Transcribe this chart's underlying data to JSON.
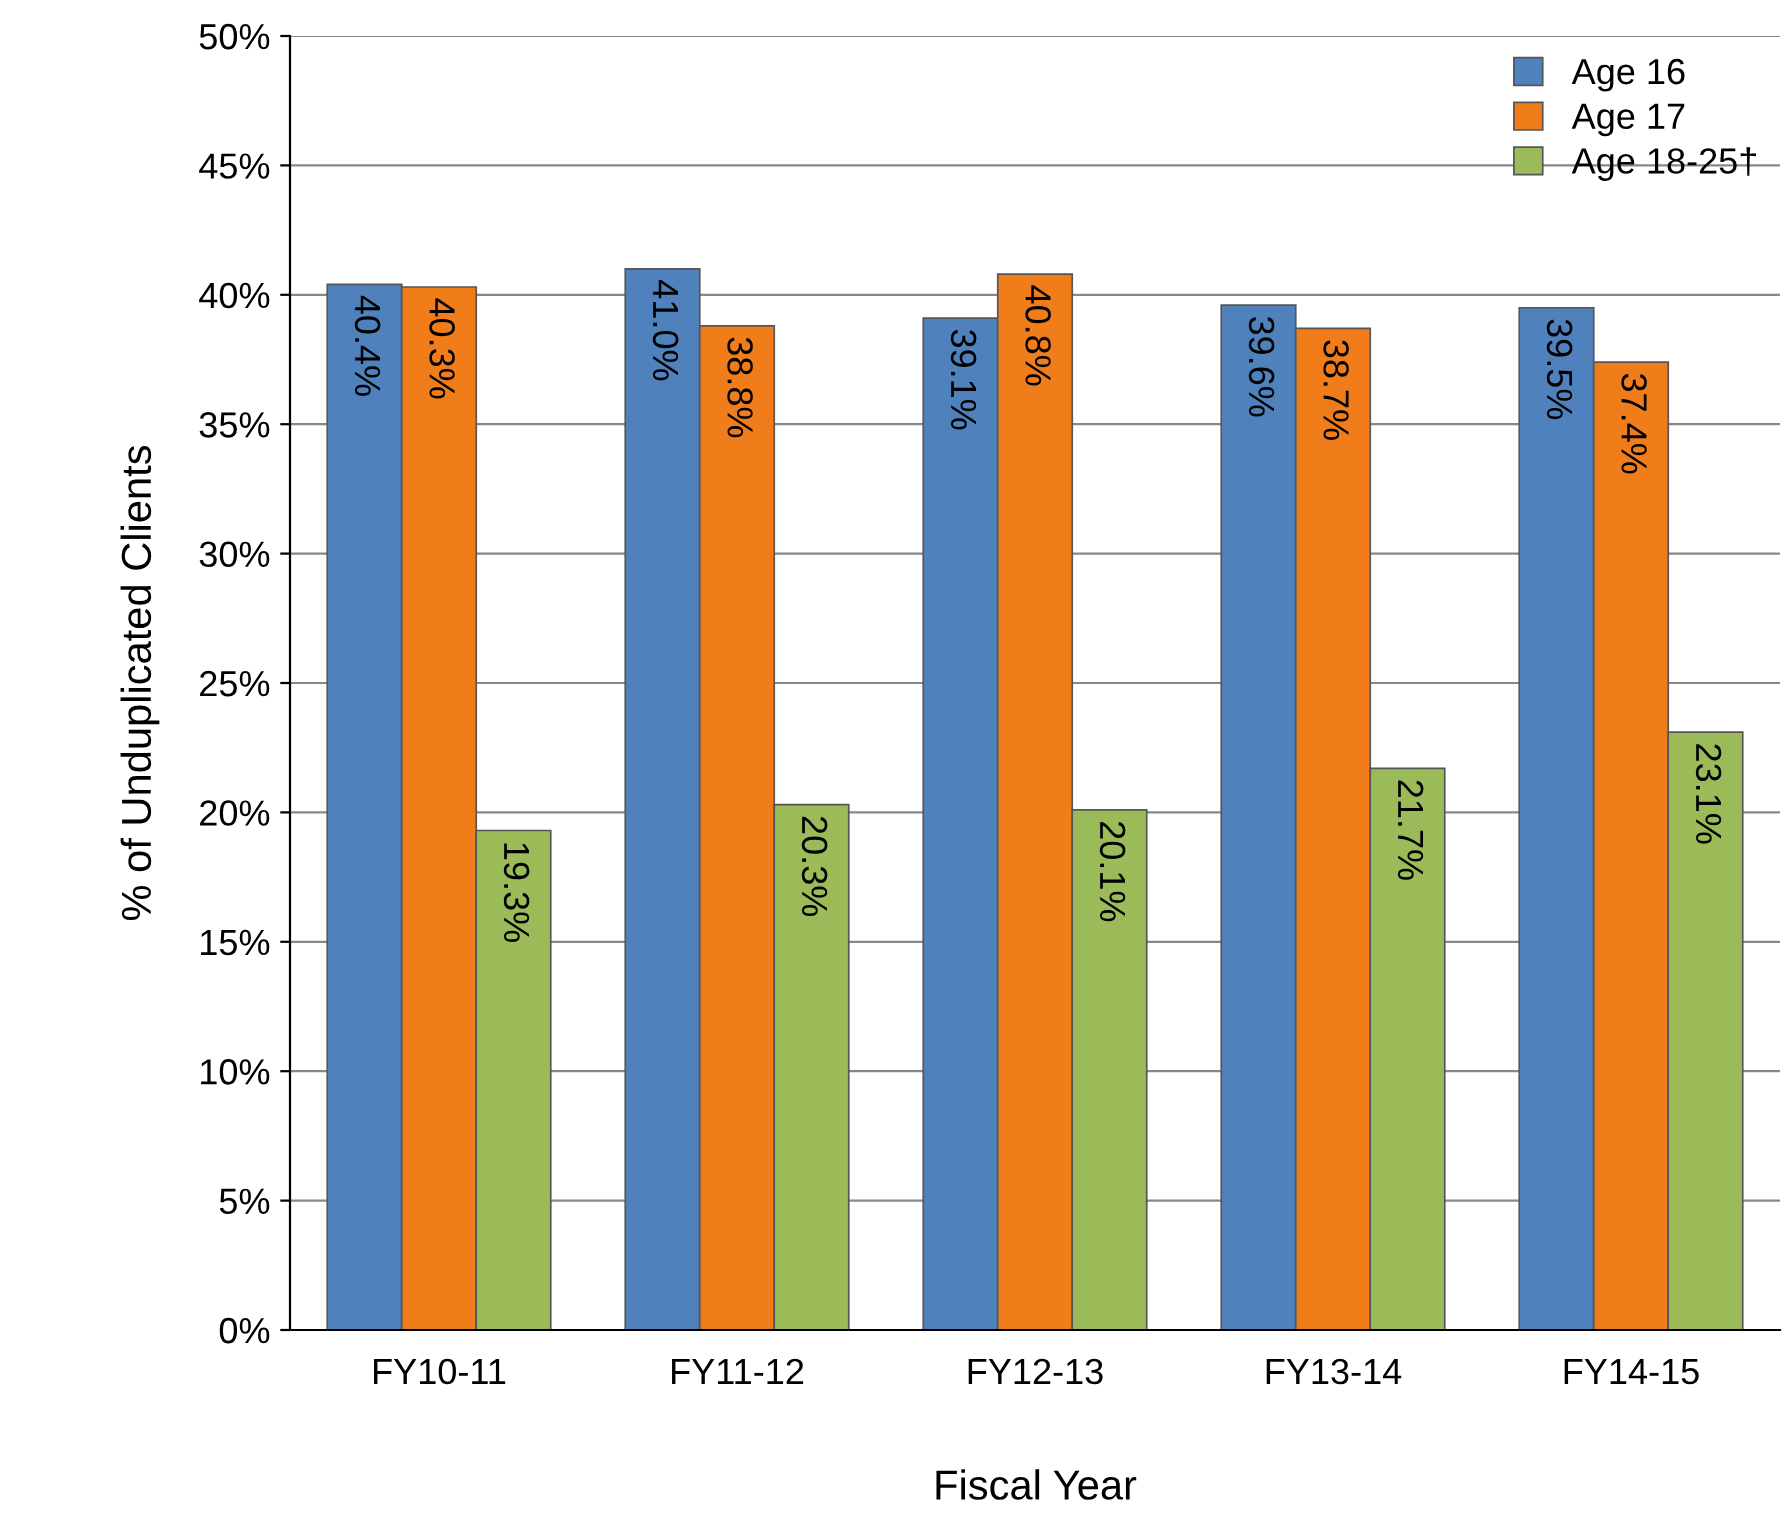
{
  "chart_data": {
    "type": "bar",
    "xlabel": "Fiscal Year",
    "ylabel": "% of Unduplicated Clients",
    "categories": [
      "FY10-11",
      "FY11-12",
      "FY12-13",
      "FY13-14",
      "FY14-15"
    ],
    "series": [
      {
        "name": "Age 16",
        "color": "#4f81bd",
        "values": [
          40.4,
          41.0,
          39.1,
          39.6,
          39.5
        ],
        "value_labels": [
          "40.4%",
          "41.0%",
          "39.1%",
          "39.6%",
          "39.5%"
        ]
      },
      {
        "name": "Age 17",
        "color": "#f07d1a",
        "values": [
          40.3,
          38.8,
          40.8,
          38.7,
          37.4
        ],
        "value_labels": [
          "40.3%",
          "38.8%",
          "40.8%",
          "38.7%",
          "37.4%"
        ]
      },
      {
        "name": "Age 18-25†",
        "color": "#9bbb59",
        "values": [
          19.3,
          20.3,
          20.1,
          21.7,
          23.1
        ],
        "value_labels": [
          "19.3%",
          "20.3%",
          "20.1%",
          "21.7%",
          "23.1%"
        ]
      }
    ],
    "ylim": [
      0,
      50
    ],
    "yticks": [
      {
        "value": 0,
        "label": "0%"
      },
      {
        "value": 5,
        "label": "5%"
      },
      {
        "value": 10,
        "label": "10%"
      },
      {
        "value": 15,
        "label": "15%"
      },
      {
        "value": 20,
        "label": "20%"
      },
      {
        "value": 25,
        "label": "25%"
      },
      {
        "value": 30,
        "label": "30%"
      },
      {
        "value": 35,
        "label": "35%"
      },
      {
        "value": 40,
        "label": "40%"
      },
      {
        "value": 45,
        "label": "45%"
      },
      {
        "value": 50,
        "label": "50%"
      }
    ],
    "grid": "y",
    "legend": "top right"
  }
}
